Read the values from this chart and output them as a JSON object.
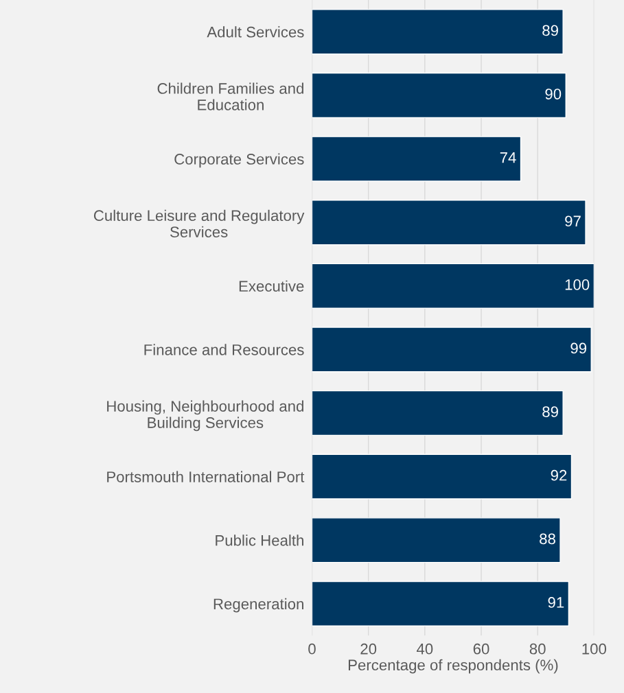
{
  "chart_data": {
    "type": "bar",
    "orientation": "horizontal",
    "xlabel": "Percentage of respondents (%)",
    "categories": [
      "Adult Services",
      "Children Families and\nEducation",
      "Corporate Services",
      "Culture Leisure and Regulatory\nServices",
      "Executive",
      "Finance and Resources",
      "Housing, Neighbourhood and\nBuilding Services",
      "Portsmouth International Port",
      "Public Health",
      "Regeneration"
    ],
    "values": [
      89,
      90,
      74,
      97,
      100,
      99,
      89,
      92,
      88,
      91
    ],
    "color": "#003761",
    "xlim": [
      0,
      100
    ],
    "xticks": [
      0,
      20,
      40,
      60,
      80,
      100
    ],
    "grid": "x",
    "data_labels": true
  }
}
